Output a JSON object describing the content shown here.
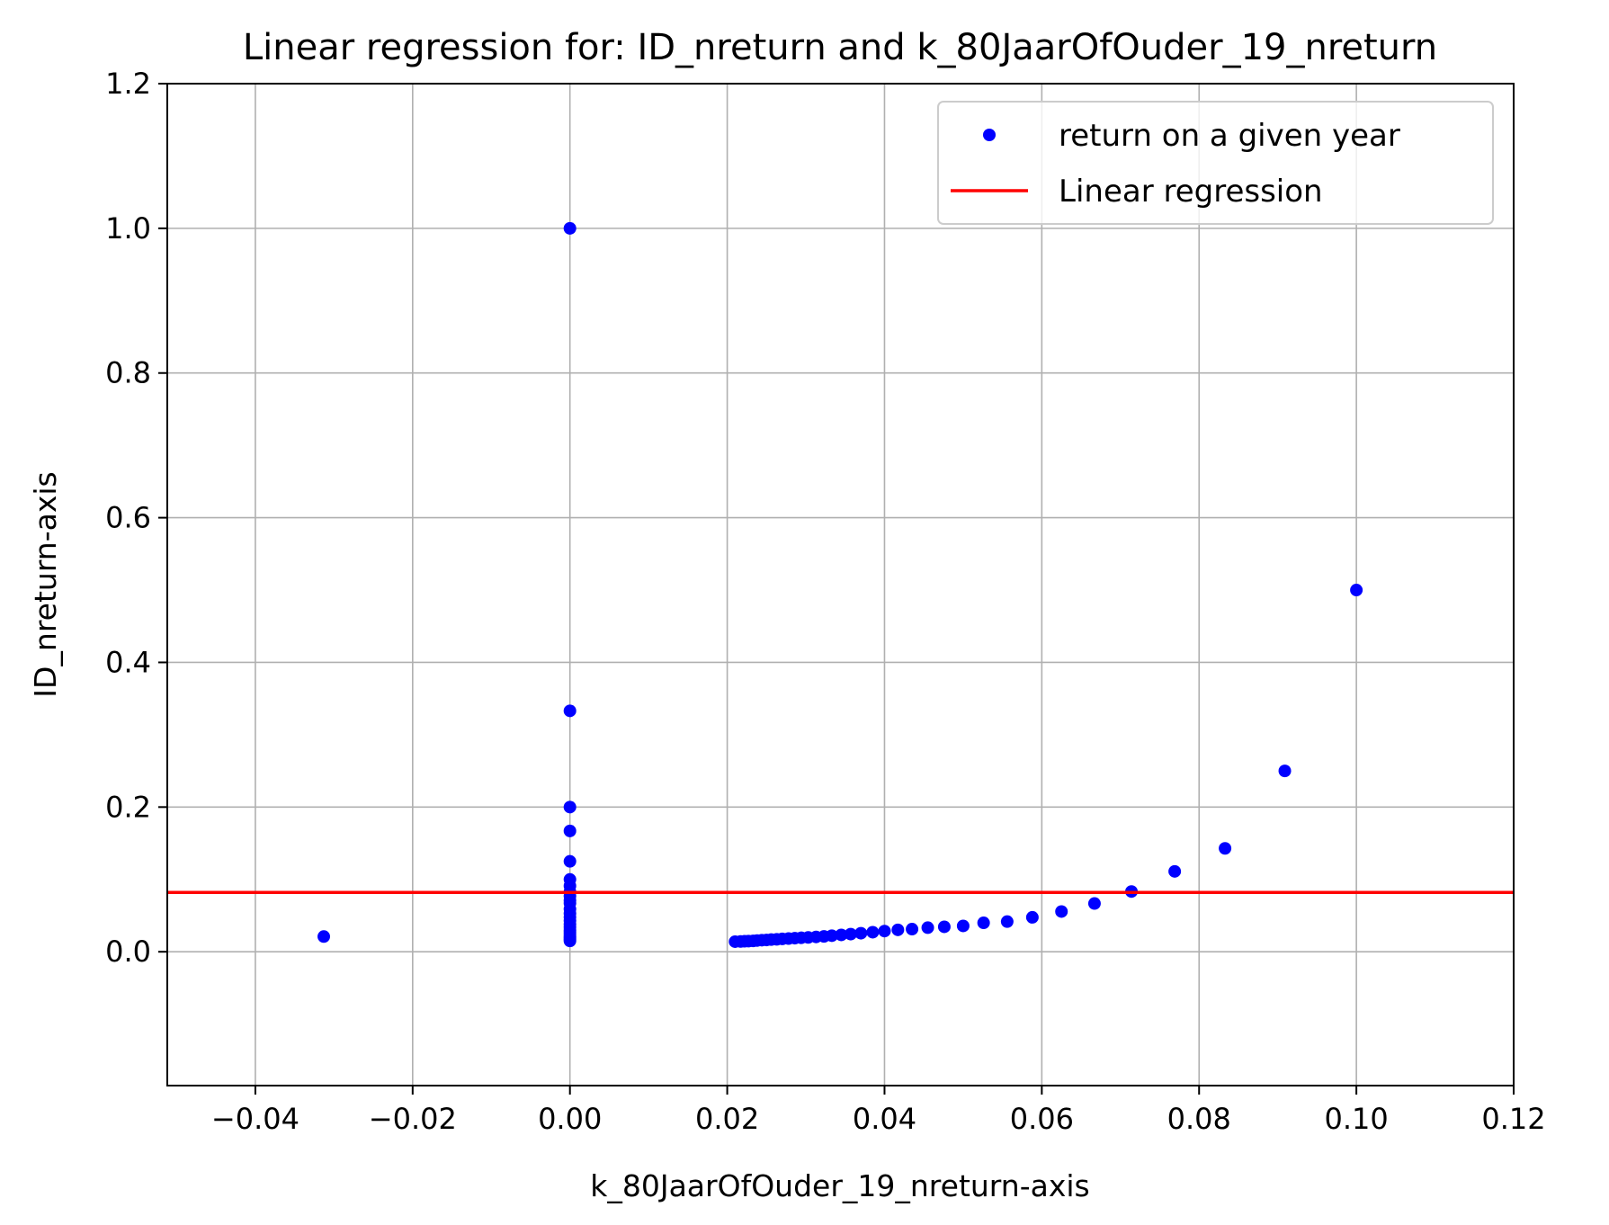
{
  "chart_data": {
    "type": "scatter",
    "title": "Linear regression for: ID_nreturn and k_80JaarOfOuder_19_nreturn",
    "xlabel": "k_80JaarOfOuder_19_nreturn-axis",
    "ylabel": "ID_nreturn-axis",
    "xlim": [
      -0.0512,
      0.12
    ],
    "ylim": [
      -0.185,
      1.2
    ],
    "grid": true,
    "legend_position": "top-right",
    "x_ticks": [
      -0.04,
      -0.02,
      0.0,
      0.02,
      0.04,
      0.06,
      0.08,
      0.1,
      0.12
    ],
    "x_tick_labels": [
      "−0.04",
      "−0.02",
      "0.00",
      "0.02",
      "0.04",
      "0.06",
      "0.08",
      "0.10",
      "0.12"
    ],
    "y_ticks": [
      0.0,
      0.2,
      0.4,
      0.6,
      0.8,
      1.0,
      1.2
    ],
    "y_tick_labels": [
      "0.0",
      "0.2",
      "0.4",
      "0.6",
      "0.8",
      "1.0",
      "1.2"
    ],
    "series": [
      {
        "name": "return on a given year",
        "kind": "scatter",
        "color": "#0000ff",
        "points": [
          [
            -0.0313,
            0.021
          ],
          [
            0.0,
            1.0
          ],
          [
            0.0,
            0.333
          ],
          [
            0.0,
            0.2
          ],
          [
            0.0,
            0.167
          ],
          [
            0.0,
            0.125
          ],
          [
            0.0,
            0.1
          ],
          [
            0.0,
            0.091
          ],
          [
            0.0,
            0.083
          ],
          [
            0.0,
            0.077
          ],
          [
            0.0,
            0.071
          ],
          [
            0.0,
            0.067
          ],
          [
            0.0,
            0.059
          ],
          [
            0.0,
            0.053
          ],
          [
            0.0,
            0.048
          ],
          [
            0.0,
            0.043
          ],
          [
            0.0,
            0.038
          ],
          [
            0.0,
            0.034
          ],
          [
            0.0,
            0.03
          ],
          [
            0.0,
            0.027
          ],
          [
            0.0,
            0.024
          ],
          [
            0.0,
            0.021
          ],
          [
            0.0,
            0.019
          ],
          [
            0.0,
            0.017
          ],
          [
            0.0,
            0.015
          ],
          [
            0.021,
            0.014
          ],
          [
            0.0217,
            0.0142
          ],
          [
            0.0222,
            0.0145
          ],
          [
            0.0227,
            0.0147
          ],
          [
            0.0233,
            0.015
          ],
          [
            0.0238,
            0.0155
          ],
          [
            0.0244,
            0.016
          ],
          [
            0.025,
            0.0163
          ],
          [
            0.0256,
            0.0168
          ],
          [
            0.0263,
            0.0172
          ],
          [
            0.027,
            0.0178
          ],
          [
            0.0278,
            0.0182
          ],
          [
            0.0286,
            0.0188
          ],
          [
            0.0294,
            0.0193
          ],
          [
            0.0303,
            0.0198
          ],
          [
            0.0313,
            0.0205
          ],
          [
            0.0323,
            0.0212
          ],
          [
            0.0333,
            0.0222
          ],
          [
            0.0345,
            0.0233
          ],
          [
            0.0357,
            0.0244
          ],
          [
            0.037,
            0.0256
          ],
          [
            0.0385,
            0.027
          ],
          [
            0.04,
            0.0286
          ],
          [
            0.0417,
            0.0303
          ],
          [
            0.0435,
            0.0313
          ],
          [
            0.0455,
            0.0333
          ],
          [
            0.0476,
            0.0345
          ],
          [
            0.05,
            0.0357
          ],
          [
            0.0526,
            0.04
          ],
          [
            0.0556,
            0.0417
          ],
          [
            0.0588,
            0.0476
          ],
          [
            0.0625,
            0.0556
          ],
          [
            0.0667,
            0.0667
          ],
          [
            0.0714,
            0.0833
          ],
          [
            0.0769,
            0.1111
          ],
          [
            0.0833,
            0.1429
          ],
          [
            0.0909,
            0.25
          ],
          [
            0.1,
            0.5
          ]
        ]
      },
      {
        "name": "Linear regression",
        "kind": "line",
        "color": "#ff0000",
        "intercept": 0.082,
        "slope": 0.0
      }
    ]
  }
}
